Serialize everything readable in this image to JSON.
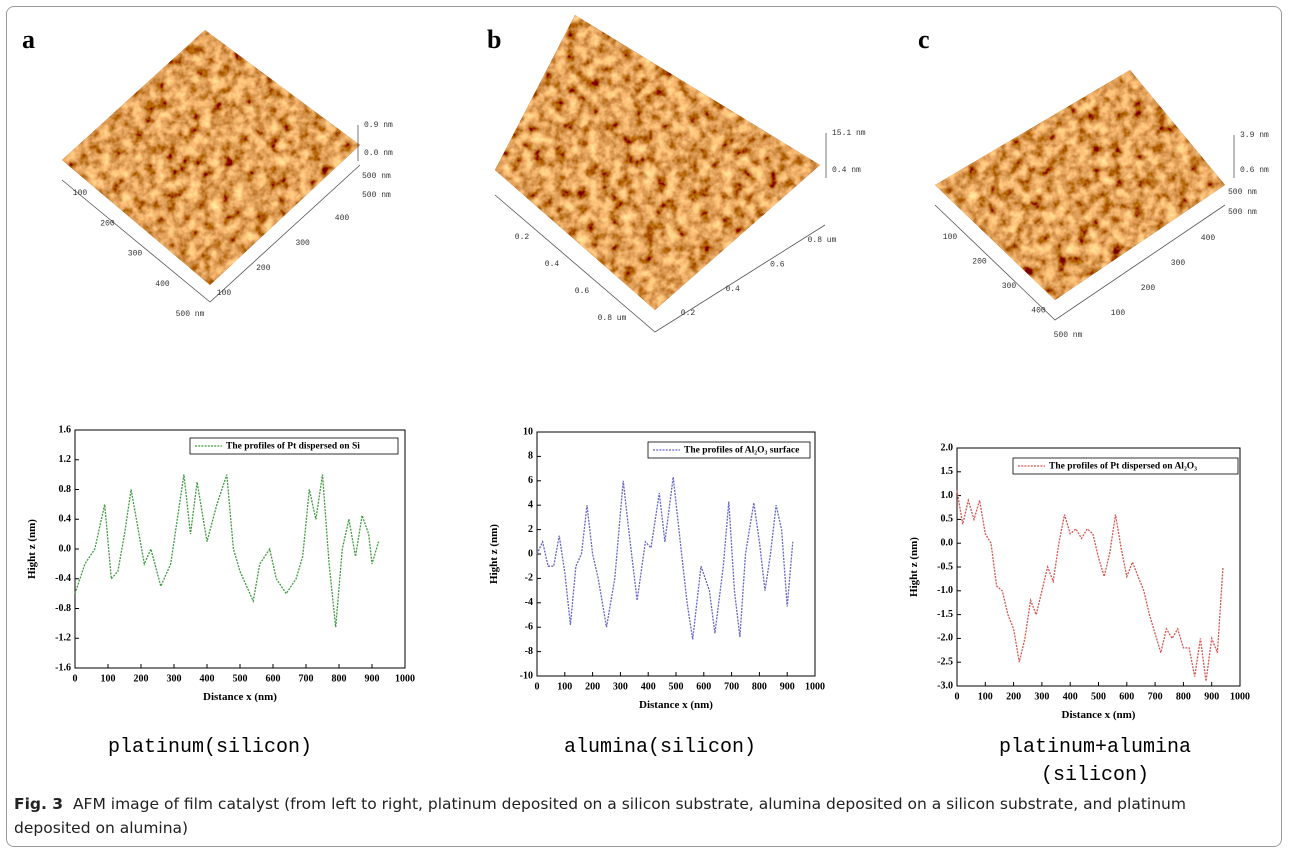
{
  "afm_images": [
    {
      "letter": "a",
      "z_labels": [
        "0.9 nm",
        "0.0 nm"
      ],
      "corner_labels": [
        "500 nm",
        "500 nm"
      ],
      "left_ticks": [
        "100",
        "200",
        "300",
        "400",
        "500 nm"
      ],
      "right_ticks": [
        "100",
        "200",
        "300",
        "400"
      ],
      "caption": [
        "platinum(silicon)"
      ]
    },
    {
      "letter": "b",
      "z_labels": [
        "15.1 nm",
        "0.4 nm"
      ],
      "corner_labels": [],
      "left_ticks": [
        "0.2",
        "0.4",
        "0.6",
        "0.8 um"
      ],
      "right_ticks": [
        "0.2",
        "0.4",
        "0.6",
        "0.8 um"
      ],
      "caption": [
        "alumina(silicon)"
      ]
    },
    {
      "letter": "c",
      "z_labels": [
        "3.9 nm",
        "0.6 nm"
      ],
      "corner_labels": [
        "500 nm",
        "500 nm"
      ],
      "left_ticks": [
        "100",
        "200",
        "300",
        "400",
        "500 nm"
      ],
      "right_ticks": [
        "100",
        "200",
        "300",
        "400"
      ],
      "caption": [
        "platinum+alumina",
        "(silicon)"
      ]
    }
  ],
  "chart_data": [
    {
      "type": "line",
      "x_label": "Distance x (nm)",
      "y_label": "Hight z (nm)",
      "x": [
        0,
        30,
        60,
        90,
        110,
        130,
        150,
        170,
        190,
        210,
        230,
        260,
        290,
        310,
        330,
        350,
        370,
        400,
        430,
        460,
        480,
        500,
        540,
        560,
        590,
        610,
        640,
        670,
        690,
        710,
        730,
        750,
        770,
        790,
        810,
        830,
        850,
        870,
        890,
        900,
        920
      ],
      "series": [
        {
          "name": "The profiles of Pt dispersed on Si",
          "color": "#3f9a3f",
          "values": [
            -0.6,
            -0.2,
            0.0,
            0.6,
            -0.4,
            -0.3,
            0.2,
            0.8,
            0.3,
            -0.2,
            0.0,
            -0.5,
            -0.2,
            0.4,
            1.0,
            0.2,
            0.9,
            0.1,
            0.6,
            1.0,
            0.0,
            -0.3,
            -0.7,
            -0.2,
            0.0,
            -0.4,
            -0.6,
            -0.4,
            -0.1,
            0.8,
            0.4,
            1.0,
            -0.2,
            -1.05,
            0.0,
            0.4,
            -0.1,
            0.45,
            0.2,
            -0.2,
            0.1
          ]
        }
      ],
      "xlim": [
        0,
        1000
      ],
      "xticks": [
        0,
        100,
        200,
        300,
        400,
        500,
        600,
        700,
        800,
        900,
        1000
      ],
      "ylim": [
        -1.6,
        1.6
      ],
      "yticks": [
        -1.6,
        -1.2,
        -0.8,
        -0.4,
        {
          "value": 0,
          "label": "0.0"
        },
        0.4,
        0.8,
        1.2,
        1.6
      ]
    },
    {
      "type": "line",
      "x_label": "Distance x (nm)",
      "y_label": "Hight z (nm)",
      "x": [
        0,
        20,
        40,
        60,
        80,
        100,
        120,
        140,
        160,
        180,
        200,
        220,
        250,
        280,
        310,
        330,
        360,
        390,
        410,
        440,
        460,
        490,
        520,
        540,
        560,
        590,
        620,
        640,
        670,
        690,
        710,
        730,
        750,
        780,
        800,
        820,
        840,
        860,
        880,
        900,
        920
      ],
      "series": [
        {
          "name": "The profiles of  Al₂O₃ surface",
          "color": "#6464c8",
          "values": [
            0,
            1,
            -1,
            -1,
            1.5,
            -1.5,
            -5.8,
            -1,
            0,
            4,
            0,
            -2,
            -6,
            -2,
            6,
            2,
            -3.8,
            1,
            0.5,
            5,
            1,
            6.3,
            0,
            -4,
            -7,
            -1,
            -3,
            -6.5,
            -1,
            4.3,
            -3,
            -6.8,
            0,
            4.2,
            1,
            -3,
            0,
            4,
            2,
            -4.3,
            1
          ]
        }
      ],
      "xlim": [
        0,
        1000
      ],
      "xticks": [
        0,
        100,
        200,
        300,
        400,
        500,
        600,
        700,
        800,
        900,
        1000
      ],
      "ylim": [
        -10,
        10
      ],
      "yticks": [
        -10,
        -8,
        -6,
        -4,
        -2,
        0,
        2,
        4,
        6,
        8,
        10
      ]
    },
    {
      "type": "line",
      "x_label": "Distance x (nm)",
      "y_label": "Hight z (nm)",
      "x": [
        0,
        20,
        40,
        60,
        80,
        100,
        120,
        140,
        160,
        180,
        200,
        220,
        240,
        260,
        280,
        300,
        320,
        340,
        360,
        380,
        400,
        420,
        440,
        460,
        480,
        500,
        520,
        540,
        560,
        580,
        600,
        620,
        640,
        660,
        680,
        700,
        720,
        740,
        760,
        780,
        800,
        820,
        840,
        860,
        880,
        900,
        920,
        940
      ],
      "series": [
        {
          "name": "The profiles of Pt dispersed on  Al₂O₃",
          "color": "#d9534f",
          "values": [
            1.1,
            0.4,
            0.9,
            0.5,
            0.9,
            0.2,
            0.0,
            -0.9,
            -1.0,
            -1.5,
            -1.8,
            -2.5,
            -2.0,
            -1.2,
            -1.5,
            -1.0,
            -0.5,
            -0.8,
            0.0,
            0.6,
            0.2,
            0.3,
            0.1,
            0.3,
            0.2,
            -0.3,
            -0.7,
            -0.2,
            0.6,
            -0.1,
            -0.7,
            -0.4,
            -0.7,
            -1.0,
            -1.5,
            -1.9,
            -2.3,
            -1.8,
            -2.0,
            -1.8,
            -2.2,
            -2.2,
            -2.8,
            -2.0,
            -2.9,
            -2.0,
            -2.3,
            -0.5
          ]
        }
      ],
      "xlim": [
        0,
        1000
      ],
      "xticks": [
        0,
        100,
        200,
        300,
        400,
        500,
        600,
        700,
        800,
        900,
        1000
      ],
      "ylim": [
        -3.0,
        2.0
      ],
      "yticks": [
        {
          "value": -3,
          "label": "-3.0"
        },
        -2.5,
        {
          "value": -2,
          "label": "-2.0"
        },
        -1.5,
        {
          "value": -1,
          "label": "-1.0"
        },
        -0.5,
        {
          "value": 0,
          "label": "0.0"
        },
        0.5,
        {
          "value": 1,
          "label": "1.0"
        },
        1.5,
        {
          "value": 2,
          "label": "2.0"
        }
      ]
    }
  ],
  "figure_caption": {
    "label": "Fig. 3",
    "text": "AFM image of film catalyst (from left to right, platinum deposited on a silicon substrate, alumina deposited on a silicon substrate, and platinum deposited on alumina)"
  }
}
